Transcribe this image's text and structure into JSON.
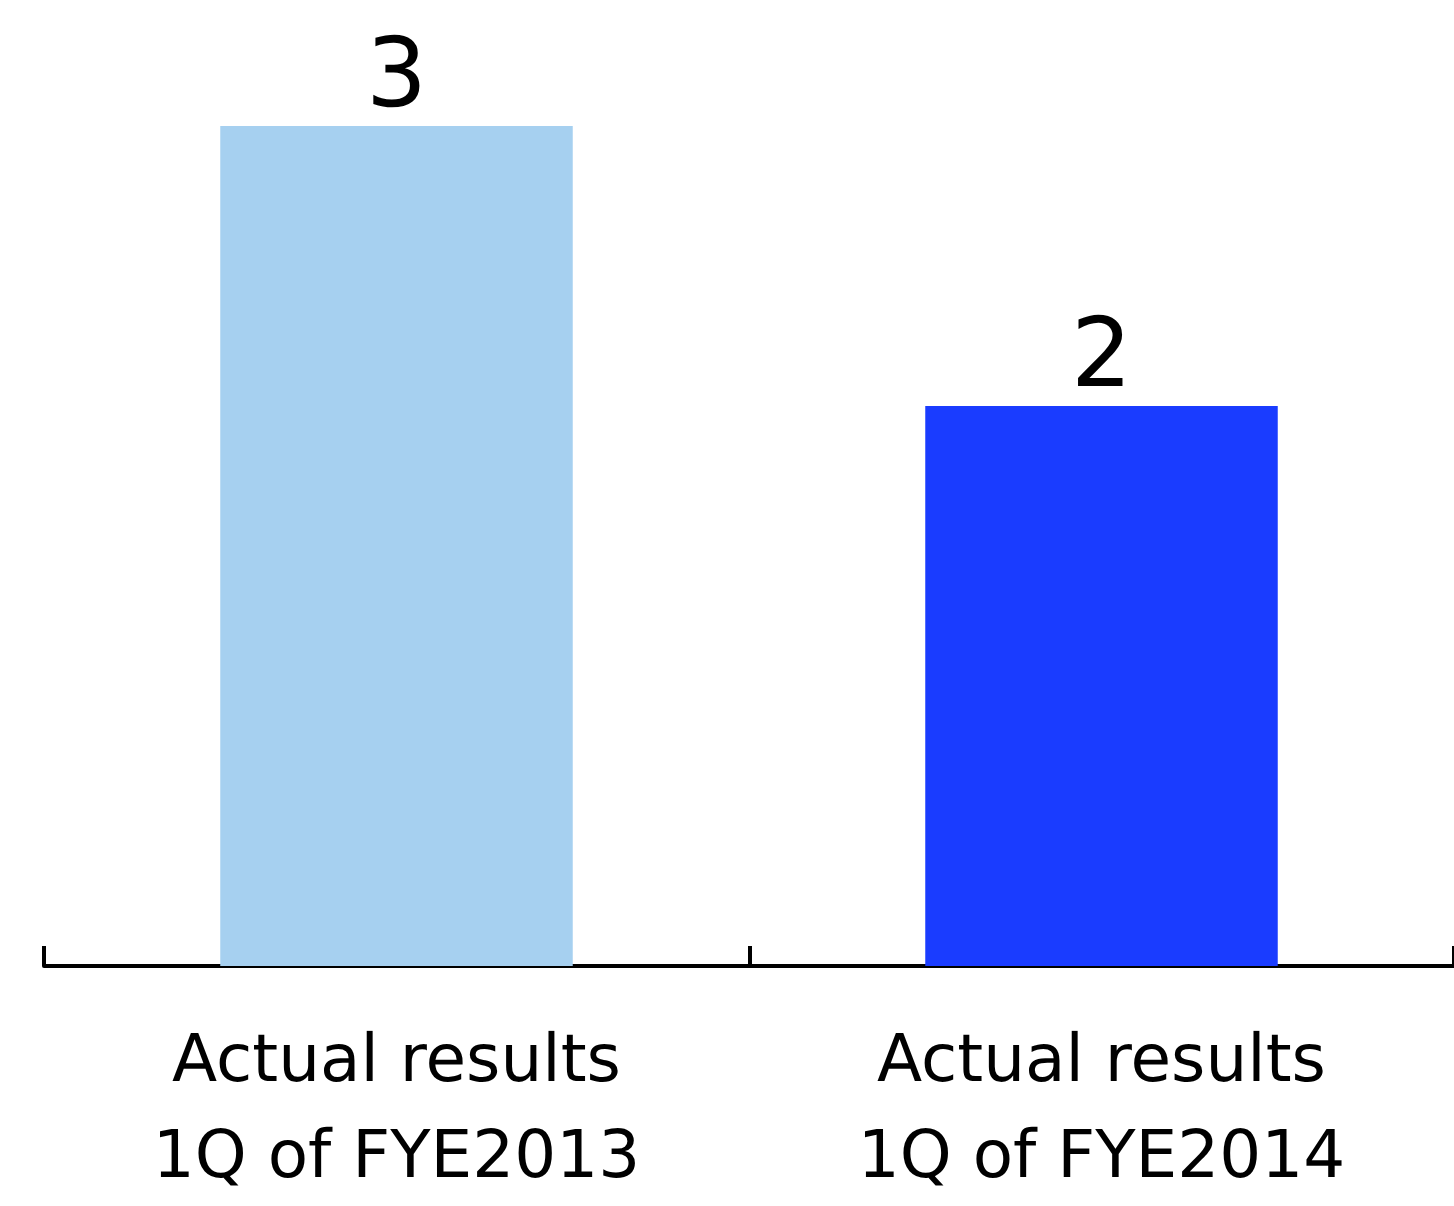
{
  "chart_data": {
    "type": "bar",
    "categories": [
      "Actual results\n1Q of FYE2013",
      "Actual results\n1Q of FYE2014"
    ],
    "values": [
      3,
      2
    ],
    "colors": [
      "#a6d0f0",
      "#1a3cff"
    ],
    "data_labels": true
  }
}
